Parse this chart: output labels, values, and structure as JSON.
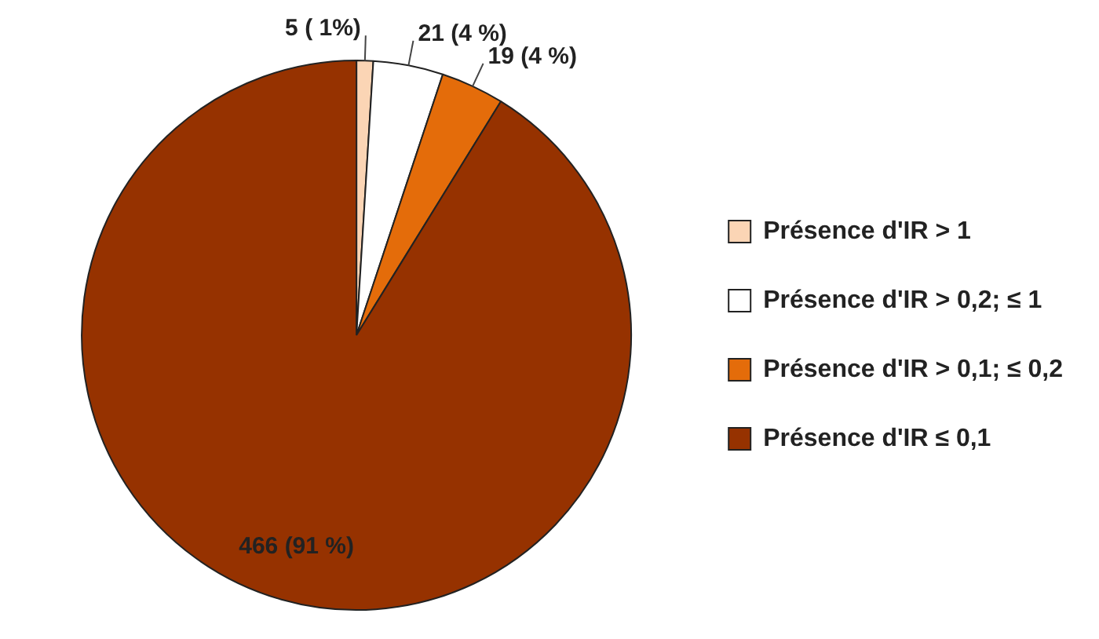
{
  "chart_data": {
    "type": "pie",
    "categories": [
      "Présence d'IR > 1",
      "Présence d'IR > 0,2; ≤ 1",
      "Présence d'IR > 0,1; ≤ 0,2",
      "Présence d'IR ≤ 0,1"
    ],
    "values": [
      5,
      21,
      19,
      466
    ],
    "value_labels": [
      "5 ( 1%)",
      "21 (4 %)",
      "19 (4 %)",
      "466 (91 %)"
    ],
    "colors": [
      "#fbd5b5",
      "#ffffff",
      "#e46c0a",
      "#963200"
    ],
    "legend": "right"
  }
}
